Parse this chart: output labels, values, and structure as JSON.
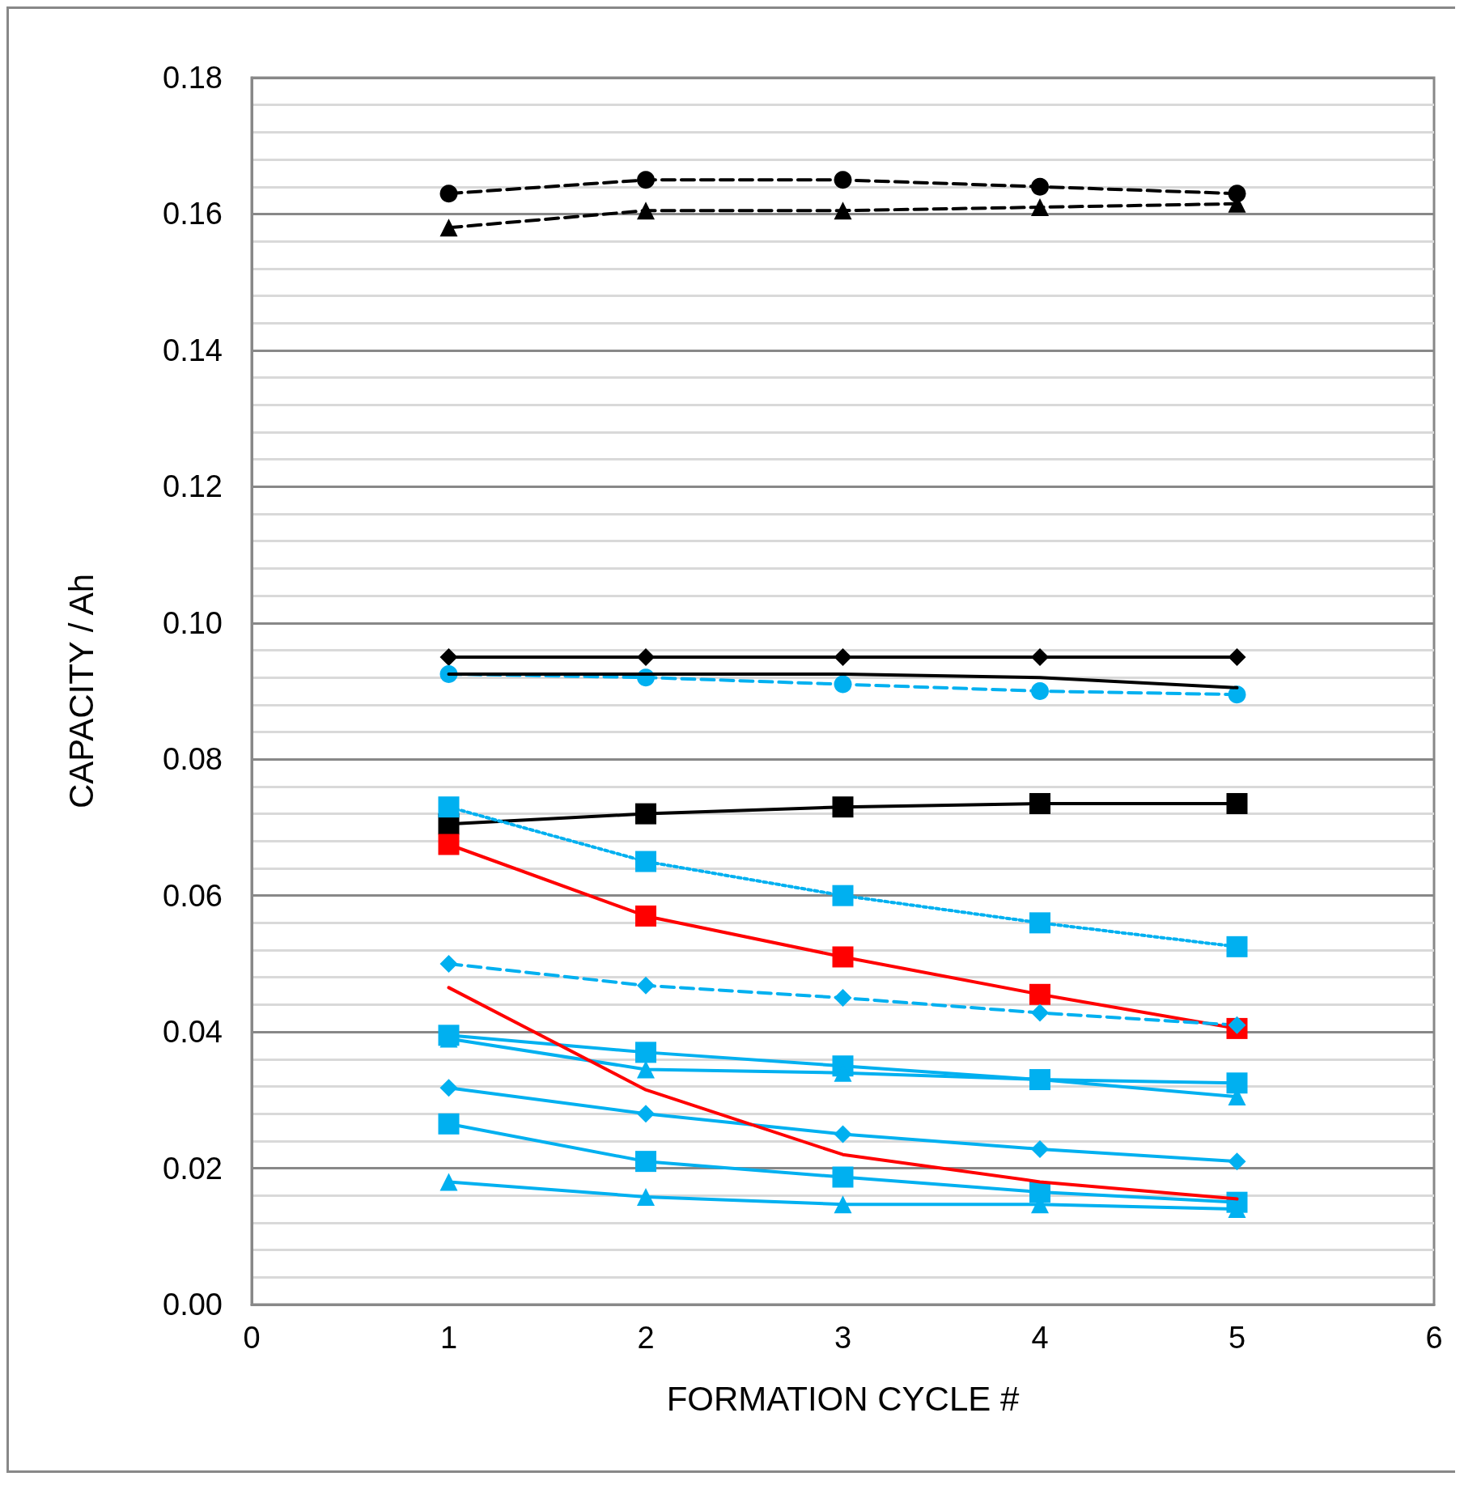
{
  "chart_data": {
    "type": "line",
    "xlabel": "FORMATION CYCLE #",
    "ylabel": "CAPACITY / Ah",
    "x": [
      1,
      2,
      3,
      4,
      5
    ],
    "xlim": [
      0,
      6
    ],
    "xticks": [
      0,
      1,
      2,
      3,
      4,
      5,
      6
    ],
    "ylim": [
      0,
      0.18
    ],
    "yticks": [
      {
        "value": 0,
        "label": "0.00"
      },
      {
        "value": 0.004,
        "label": null
      },
      {
        "value": 0.008,
        "label": null
      },
      {
        "value": 0.012,
        "label": null
      },
      {
        "value": 0.016,
        "label": null
      },
      {
        "value": 0.02,
        "label": "0.02"
      },
      {
        "value": 0.024,
        "label": null
      },
      {
        "value": 0.028,
        "label": null
      },
      {
        "value": 0.032,
        "label": null
      },
      {
        "value": 0.036,
        "label": null
      },
      {
        "value": 0.04,
        "label": "0.04"
      },
      {
        "value": 0.044,
        "label": null
      },
      {
        "value": 0.048,
        "label": null
      },
      {
        "value": 0.052,
        "label": null
      },
      {
        "value": 0.056,
        "label": null
      },
      {
        "value": 0.06,
        "label": "0.06"
      },
      {
        "value": 0.064,
        "label": null
      },
      {
        "value": 0.068,
        "label": null
      },
      {
        "value": 0.072,
        "label": null
      },
      {
        "value": 0.076,
        "label": null
      },
      {
        "value": 0.08,
        "label": "0.08"
      },
      {
        "value": 0.084,
        "label": null
      },
      {
        "value": 0.088,
        "label": null
      },
      {
        "value": 0.092,
        "label": null
      },
      {
        "value": 0.096,
        "label": null
      },
      {
        "value": 0.1,
        "label": "0.10"
      },
      {
        "value": 0.104,
        "label": null
      },
      {
        "value": 0.108,
        "label": null
      },
      {
        "value": 0.112,
        "label": null
      },
      {
        "value": 0.116,
        "label": null
      },
      {
        "value": 0.12,
        "label": "0.12"
      },
      {
        "value": 0.124,
        "label": null
      },
      {
        "value": 0.128,
        "label": null
      },
      {
        "value": 0.132,
        "label": null
      },
      {
        "value": 0.136,
        "label": null
      },
      {
        "value": 0.14,
        "label": "0.14"
      },
      {
        "value": 0.144,
        "label": null
      },
      {
        "value": 0.148,
        "label": null
      },
      {
        "value": 0.152,
        "label": null
      },
      {
        "value": 0.156,
        "label": null
      },
      {
        "value": 0.16,
        "label": "0.16"
      },
      {
        "value": 0.164,
        "label": null
      },
      {
        "value": 0.168,
        "label": null
      },
      {
        "value": 0.172,
        "label": null
      },
      {
        "value": 0.176,
        "label": null
      },
      {
        "value": 0.18,
        "label": "0.18"
      }
    ],
    "grid": "y",
    "series": [
      {
        "color": "#000000",
        "marker": "circle",
        "line_style": "dashed",
        "values": [
          0.163,
          0.165,
          0.165,
          0.164,
          0.163
        ]
      },
      {
        "color": "#000000",
        "marker": "triangle",
        "line_style": "dashed",
        "values": [
          0.158,
          0.1605,
          0.1605,
          0.161,
          0.1615
        ]
      },
      {
        "color": "#000000",
        "marker": "diamond",
        "line_style": "solid",
        "values": [
          0.095,
          0.095,
          0.095,
          0.095,
          0.095
        ]
      },
      {
        "color": "#000000",
        "marker": "none",
        "line_style": "solid",
        "values": [
          0.0925,
          0.0925,
          0.0925,
          0.092,
          0.0905
        ]
      },
      {
        "color": "#00b0f0",
        "marker": "circle",
        "line_style": "dashed",
        "values": [
          0.0925,
          0.092,
          0.091,
          0.09,
          0.0895
        ]
      },
      {
        "color": "#000000",
        "marker": "square",
        "line_style": "solid",
        "values": [
          0.0705,
          0.072,
          0.073,
          0.0735,
          0.0735
        ]
      },
      {
        "color": "#00b0f0",
        "marker": "square",
        "line_style": "dotted",
        "values": [
          0.073,
          0.065,
          0.06,
          0.056,
          0.0525
        ]
      },
      {
        "color": "#ff0000",
        "marker": "square",
        "line_style": "solid",
        "values": [
          0.0675,
          0.057,
          0.051,
          0.0455,
          0.0405
        ]
      },
      {
        "color": "#00b0f0",
        "marker": "diamond",
        "line_style": "dashed",
        "values": [
          0.05,
          0.0468,
          0.045,
          0.0428,
          0.041
        ]
      },
      {
        "color": "#ff0000",
        "marker": "none",
        "line_style": "solid",
        "values": [
          0.0465,
          0.0315,
          0.022,
          0.018,
          0.0155
        ]
      },
      {
        "color": "#00b0f0",
        "marker": "square",
        "line_style": "solid",
        "values": [
          0.0395,
          0.037,
          0.035,
          0.033,
          0.0325
        ]
      },
      {
        "color": "#00b0f0",
        "marker": "triangle",
        "line_style": "solid",
        "values": [
          0.039,
          0.0345,
          0.034,
          0.033,
          0.0305
        ]
      },
      {
        "color": "#00b0f0",
        "marker": "diamond",
        "line_style": "solid",
        "values": [
          0.0318,
          0.028,
          0.025,
          0.0228,
          0.021
        ]
      },
      {
        "color": "#00b0f0",
        "marker": "square",
        "line_style": "solid",
        "values": [
          0.0265,
          0.021,
          0.0187,
          0.0165,
          0.015
        ]
      },
      {
        "color": "#00b0f0",
        "marker": "triangle",
        "line_style": "solid",
        "values": [
          0.018,
          0.0158,
          0.0147,
          0.0147,
          0.014
        ]
      }
    ]
  }
}
